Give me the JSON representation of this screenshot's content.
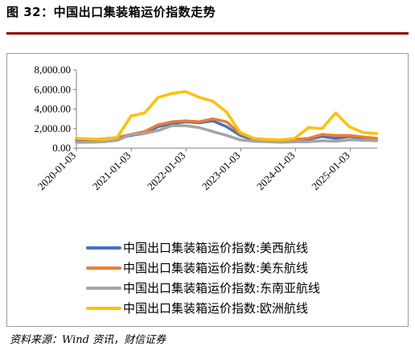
{
  "figure": {
    "title": "图 32：中国出口集装箱运价指数走势",
    "source": "资料来源：Wind 资讯，财信证券"
  },
  "chart_data": {
    "type": "line",
    "x": [
      "2020-01-03",
      "2020-04-03",
      "2020-07-03",
      "2020-10-02",
      "2021-01-01",
      "2021-04-02",
      "2021-07-02",
      "2021-10-01",
      "2021-12-31",
      "2022-04-01",
      "2022-07-01",
      "2022-09-30",
      "2022-12-30",
      "2023-03-31",
      "2023-06-30",
      "2023-09-29",
      "2023-12-29",
      "2024-03-29",
      "2024-06-28",
      "2024-09-27",
      "2024-12-27",
      "2025-03-28",
      "2025-06-27"
    ],
    "x_ticks": [
      "2020-01-03",
      "2021-01-03",
      "2022-01-03",
      "2023-01-03",
      "2024-01-03",
      "2025-01-03"
    ],
    "y_ticks": [
      "0.00",
      "2,000.00",
      "4,000.00",
      "6,000.00",
      "8,000.00"
    ],
    "ylim": [
      0,
      8000
    ],
    "series": [
      {
        "name": "中国出口集装箱运价指数:美西航线",
        "color": "#4472c4",
        "values": [
          850,
          800,
          850,
          1000,
          1300,
          1500,
          2200,
          2500,
          2700,
          2600,
          2800,
          2200,
          1300,
          850,
          800,
          750,
          850,
          900,
          1200,
          1000,
          1200,
          1000,
          950
        ]
      },
      {
        "name": "中国出口集装箱运价指数:美东航线",
        "color": "#ed7d31",
        "values": [
          950,
          900,
          950,
          1100,
          1400,
          1700,
          2400,
          2700,
          2800,
          2700,
          3000,
          2700,
          1500,
          950,
          850,
          800,
          900,
          1000,
          1400,
          1300,
          1300,
          1150,
          1000
        ]
      },
      {
        "name": "中国出口集装箱运价指数:东南亚航线",
        "color": "#a5a5a5",
        "values": [
          600,
          600,
          650,
          800,
          1400,
          1500,
          1800,
          2300,
          2300,
          2100,
          1700,
          1300,
          850,
          700,
          650,
          600,
          650,
          650,
          750,
          700,
          850,
          800,
          750
        ]
      },
      {
        "name": "中国出口集装箱运价指数:欧洲航线",
        "color": "#ffc000",
        "values": [
          1000,
          950,
          900,
          1100,
          3300,
          3600,
          5200,
          5600,
          5800,
          5200,
          4800,
          3700,
          1600,
          1000,
          900,
          850,
          1000,
          2100,
          2000,
          3600,
          2200,
          1600,
          1500
        ]
      }
    ],
    "grid": false,
    "legend_position": "bottom"
  }
}
